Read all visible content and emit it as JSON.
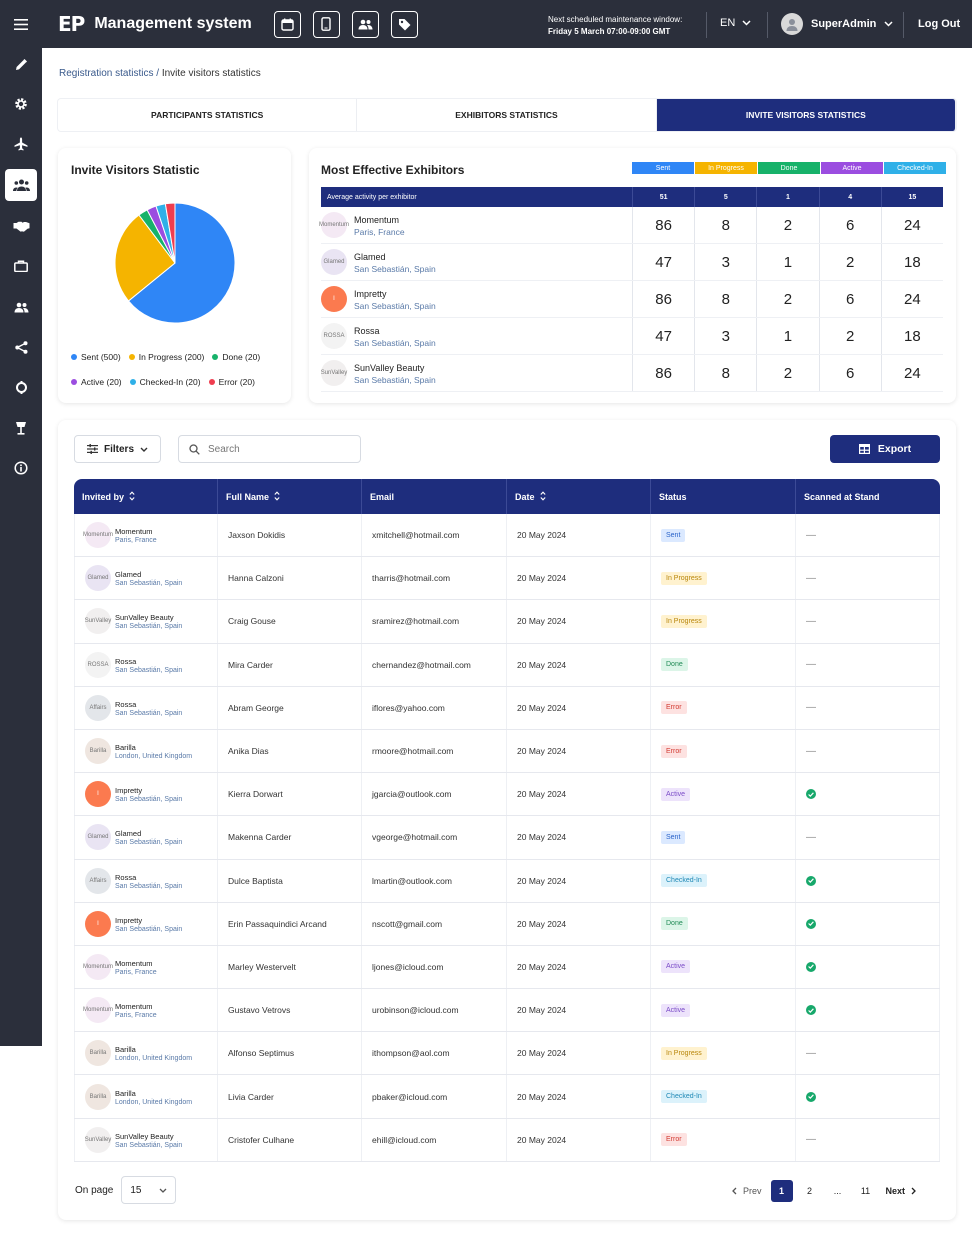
{
  "header": {
    "logo_mark": "EP",
    "app_title": "Management system",
    "maintenance_label": "Next scheduled maintenance window:",
    "maintenance_date": "Friday 5 March 07:00-09:00 GMT",
    "language": "EN",
    "user_name": "SuperAdmin",
    "logout": "Log Out"
  },
  "breadcrumb": {
    "parent": "Registration statistics",
    "separator": " / ",
    "current": "Invite visitors statistics"
  },
  "tabs": [
    "PARTICIPANTS STATISTICS",
    "EXHIBITORS STATISTICS",
    "INVITE VISITORS STATISTICS"
  ],
  "pie_card": {
    "title": "Invite Visitors Statistic",
    "legend": [
      {
        "label": "Sent (500)",
        "color": "#2f86f6"
      },
      {
        "label": "In Progress (200)",
        "color": "#f5b400"
      },
      {
        "label": "Done (20)",
        "color": "#17b26a"
      },
      {
        "label": "Active (20)",
        "color": "#9b4de0"
      },
      {
        "label": "Checked-In (20)",
        "color": "#2fb0e8"
      },
      {
        "label": "Error (20)",
        "color": "#ef3d4f"
      }
    ]
  },
  "chart_data": {
    "type": "pie",
    "categories": [
      "Sent",
      "In Progress",
      "Done",
      "Active",
      "Checked-In",
      "Error"
    ],
    "values": [
      500,
      200,
      20,
      20,
      20,
      20
    ],
    "colors": [
      "#2f86f6",
      "#f5b400",
      "#17b26a",
      "#9b4de0",
      "#2fb0e8",
      "#ef3d4f"
    ],
    "title": "Invite Visitors Statistic"
  },
  "effective": {
    "title": "Most Effective Exhibitors",
    "legend": [
      {
        "label": "Sent",
        "color": "#2f86f6"
      },
      {
        "label": "In Progress",
        "color": "#f5b400"
      },
      {
        "label": "Done",
        "color": "#17b26a"
      },
      {
        "label": "Active",
        "color": "#9b4de0"
      },
      {
        "label": "Checked-In",
        "color": "#2fb0e8"
      }
    ],
    "average_label": "Average activity per exhibitor",
    "averages": [
      "51",
      "5",
      "1",
      "4",
      "15"
    ],
    "rows": [
      {
        "name": "Momentum",
        "location": "Paris, France",
        "logo": "Momentum",
        "logo_bg": "#f4e9f4",
        "values": [
          "86",
          "8",
          "2",
          "6",
          "24"
        ]
      },
      {
        "name": "Glamed",
        "location": "San Sebastián, Spain",
        "logo": "Glamed",
        "logo_bg": "#e9e4f3",
        "values": [
          "47",
          "3",
          "1",
          "2",
          "18"
        ]
      },
      {
        "name": "Impretty",
        "location": "San Sebastián, Spain",
        "logo": "I",
        "logo_bg": "#fb7a4f",
        "values": [
          "86",
          "8",
          "2",
          "6",
          "24"
        ]
      },
      {
        "name": "Rossa",
        "location": "San Sebastián, Spain",
        "logo": "ROSSA",
        "logo_bg": "#f3f3f3",
        "values": [
          "47",
          "3",
          "1",
          "2",
          "18"
        ]
      },
      {
        "name": "SunValley Beauty",
        "location": "San Sebastián, Spain",
        "logo": "SunValley",
        "logo_bg": "#f1efef",
        "values": [
          "86",
          "8",
          "2",
          "6",
          "24"
        ]
      }
    ]
  },
  "toolbar": {
    "filters": "Filters",
    "search_placeholder": "Search",
    "export": "Export"
  },
  "table": {
    "headers": [
      "Invited by",
      "Full Name",
      "Email",
      "Date",
      "Status",
      "Scanned at Stand"
    ],
    "rows": [
      {
        "inviter": "Momentum",
        "location": "Paris, France",
        "logo": "Momentum",
        "logo_bg": "#f4e9f4",
        "name": "Jaxson Dokidis",
        "email": "xmitchell@hotmail.com",
        "date": "20 May 2024",
        "status": "Sent",
        "scanned": false
      },
      {
        "inviter": "Glamed",
        "location": "San Sebastián, Spain",
        "logo": "Glamed",
        "logo_bg": "#e9e4f3",
        "name": "Hanna Calzoni",
        "email": "tharris@hotmail.com",
        "date": "20 May 2024",
        "status": "In Progress",
        "scanned": false
      },
      {
        "inviter": "SunValley Beauty",
        "location": "San Sebastián, Spain",
        "logo": "SunValley",
        "logo_bg": "#f1efef",
        "name": "Craig Gouse",
        "email": "sramirez@hotmail.com",
        "date": "20 May 2024",
        "status": "In Progress",
        "scanned": false
      },
      {
        "inviter": "Rossa",
        "location": "San Sebastián, Spain",
        "logo": "ROSSA",
        "logo_bg": "#f3f3f3",
        "name": "Mira Carder",
        "email": "chernandez@hotmail.com",
        "date": "20 May 2024",
        "status": "Done",
        "scanned": false
      },
      {
        "inviter": "Rossa",
        "location": "San Sebastián, Spain",
        "logo": "Affairs",
        "logo_bg": "#e3e6ea",
        "name": "Abram George",
        "email": "iflores@yahoo.com",
        "date": "20 May 2024",
        "status": "Error",
        "scanned": false
      },
      {
        "inviter": "Barilla",
        "location": "London, United Kingdom",
        "logo": "Barilla",
        "logo_bg": "#efe6e0",
        "name": "Anika Dias",
        "email": "rmoore@hotmail.com",
        "date": "20 May 2024",
        "status": "Error",
        "scanned": false
      },
      {
        "inviter": "Impretty",
        "location": "San Sebastián, Spain",
        "logo": "I",
        "logo_bg": "#fb7a4f",
        "name": "Kierra Dorwart",
        "email": "jgarcia@outlook.com",
        "date": "20 May 2024",
        "status": "Active",
        "scanned": true
      },
      {
        "inviter": "Glamed",
        "location": "San Sebastián, Spain",
        "logo": "Glamed",
        "logo_bg": "#e9e4f3",
        "name": "Makenna Carder",
        "email": "vgeorge@hotmail.com",
        "date": "20 May 2024",
        "status": "Sent",
        "scanned": false
      },
      {
        "inviter": "Rossa",
        "location": "San Sebastián, Spain",
        "logo": "Affairs",
        "logo_bg": "#e3e6ea",
        "name": "Dulce Baptista",
        "email": "lmartin@outlook.com",
        "date": "20 May 2024",
        "status": "Checked-In",
        "scanned": true
      },
      {
        "inviter": "Impretty",
        "location": "San Sebastián, Spain",
        "logo": "I",
        "logo_bg": "#fb7a4f",
        "name": "Erin Passaquindici Arcand",
        "email": "nscott@gmail.com",
        "date": "20 May 2024",
        "status": "Done",
        "scanned": true
      },
      {
        "inviter": "Momentum",
        "location": "Paris, France",
        "logo": "Momentum",
        "logo_bg": "#f4e9f4",
        "name": "Marley Westervelt",
        "email": "ljones@icloud.com",
        "date": "20 May 2024",
        "status": "Active",
        "scanned": true
      },
      {
        "inviter": "Momentum",
        "location": "Paris, France",
        "logo": "Momentum",
        "logo_bg": "#f4e9f4",
        "name": "Gustavo Vetrovs",
        "email": "urobinson@icloud.com",
        "date": "20 May 2024",
        "status": "Active",
        "scanned": true
      },
      {
        "inviter": "Barilla",
        "location": "London, United Kingdom",
        "logo": "Barilla",
        "logo_bg": "#efe6e0",
        "name": "Alfonso Septimus",
        "email": "ithompson@aol.com",
        "date": "20 May 2024",
        "status": "In Progress",
        "scanned": false
      },
      {
        "inviter": "Barilla",
        "location": "London, United Kingdom",
        "logo": "Barilla",
        "logo_bg": "#efe6e0",
        "name": "Livia Carder",
        "email": "pbaker@icloud.com",
        "date": "20 May 2024",
        "status": "Checked-In",
        "scanned": true
      },
      {
        "inviter": "SunValley Beauty",
        "location": "San Sebastián, Spain",
        "logo": "SunValley",
        "logo_bg": "#f1efef",
        "name": "Cristofer Culhane",
        "email": "ehill@icloud.com",
        "date": "20 May 2024",
        "status": "Error",
        "scanned": false
      }
    ],
    "empty_mark": "—"
  },
  "pagination": {
    "on_page_label": "On page",
    "per_page": "15",
    "prev": "Prev",
    "pages": [
      "1",
      "2",
      "...",
      "11"
    ],
    "current": "1",
    "next": "Next"
  }
}
